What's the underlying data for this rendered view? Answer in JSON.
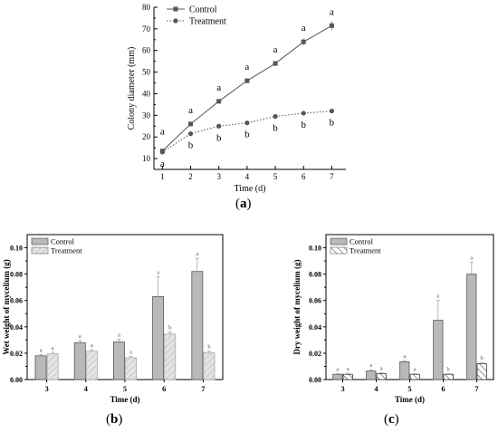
{
  "captions": {
    "a": {
      "open": "(",
      "letter": "a",
      "close": ")"
    },
    "b": {
      "open": "(",
      "letter": "b",
      "close": ")"
    },
    "c": {
      "open": "(",
      "letter": "c",
      "close": ")"
    }
  },
  "chart_data": [
    {
      "type": "line",
      "xlabel": "Time (d)",
      "ylabel": "Colony diameter (mm)",
      "x": [
        1,
        2,
        3,
        4,
        5,
        6,
        7
      ],
      "xticks": [
        "1",
        "2",
        "3",
        "4",
        "5",
        "6",
        "7"
      ],
      "yticks": [
        "10",
        "20",
        "30",
        "40",
        "50",
        "60",
        "70",
        "80"
      ],
      "xlim": [
        0.7,
        7.5
      ],
      "ylim": [
        5,
        80
      ],
      "grid": false,
      "legend_position": "top-left",
      "series": [
        {
          "name": "Control",
          "values": [
            13.5,
            26,
            36.5,
            46,
            54,
            64,
            71.5
          ],
          "errors": [
            0.6,
            1,
            1,
            1,
            1.2,
            1.5,
            2
          ],
          "labels": [
            "a",
            "a",
            "a",
            "a",
            "a",
            "a",
            "a"
          ],
          "marker": "square",
          "line": "solid",
          "color": "#555555"
        },
        {
          "name": "Treatment",
          "values": [
            13,
            21.5,
            25,
            26.5,
            29.5,
            31,
            32
          ],
          "errors": [
            0.5,
            0.6,
            0.6,
            0.5,
            0.6,
            0.5,
            0.6
          ],
          "labels": [
            "a",
            "b",
            "b",
            "b",
            "b",
            "b",
            "b"
          ],
          "marker": "circle",
          "line": "dotted",
          "color": "#555555"
        }
      ]
    },
    {
      "type": "bar",
      "xlabel": "Time (d)",
      "ylabel": "Wet weight of mycelium (g)",
      "categories": [
        "3",
        "4",
        "5",
        "6",
        "7"
      ],
      "yticks": [
        "0.00",
        "0.02",
        "0.04",
        "0.06",
        "0.08",
        "0.10"
      ],
      "ylim": [
        0,
        0.11
      ],
      "legend_position": "top-left",
      "series": [
        {
          "name": "Control",
          "values": [
            0.018,
            0.028,
            0.0285,
            0.063,
            0.082
          ],
          "errors": [
            0.001,
            0.0015,
            0.002,
            0.015,
            0.01
          ],
          "labels": [
            "a",
            "a",
            "a",
            "a",
            "a"
          ],
          "fill": "#b9b9b9"
        },
        {
          "name": "Treatment",
          "values": [
            0.0195,
            0.0215,
            0.0165,
            0.0345,
            0.0205
          ],
          "errors": [
            0.0012,
            0.0012,
            0.001,
            0.0015,
            0.001
          ],
          "labels": [
            "a",
            "a",
            "a",
            "b",
            "b"
          ],
          "fill": "#e4e4e4",
          "pattern": "light-diagonal"
        }
      ]
    },
    {
      "type": "bar",
      "xlabel": "Time (d)",
      "ylabel": "Dry weight of mycelium (g)",
      "categories": [
        "3",
        "4",
        "5",
        "6",
        "7"
      ],
      "yticks": [
        "0.00",
        "0.02",
        "0.04",
        "0.06",
        "0.08",
        "0.10"
      ],
      "ylim": [
        0,
        0.11
      ],
      "legend_position": "top-left",
      "series": [
        {
          "name": "Control",
          "values": [
            0.004,
            0.0065,
            0.0135,
            0.045,
            0.08
          ],
          "errors": [
            0.0005,
            0.001,
            0.001,
            0.015,
            0.009
          ],
          "labels": [
            "a",
            "a",
            "a",
            "a",
            "a"
          ],
          "fill": "#b9b9b9"
        },
        {
          "name": "Treatment",
          "values": [
            0.004,
            0.0045,
            0.004,
            0.004,
            0.012
          ],
          "errors": [
            0.0008,
            0.0008,
            0.0006,
            0.0005,
            0.001
          ],
          "labels": [
            "a",
            "a",
            "a",
            "b",
            "b"
          ],
          "fill": "#ffffff",
          "pattern": "hatch"
        }
      ]
    }
  ]
}
